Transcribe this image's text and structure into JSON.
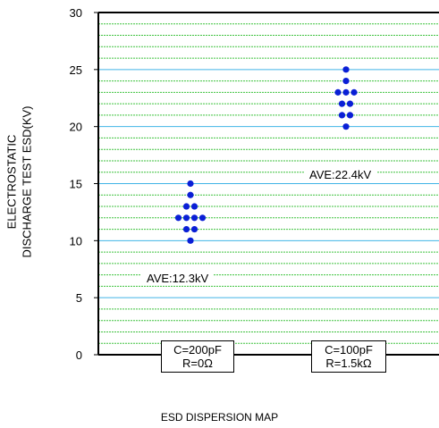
{
  "chart_data": {
    "type": "scatter",
    "ylabel_lines": [
      "ELECTROSTATIC",
      "DISCHARGE TEST ESD(KV)"
    ],
    "xlabel": "ESD DISPERSION MAP",
    "ylim": [
      0,
      30
    ],
    "yticks": [
      0,
      5,
      10,
      15,
      20,
      25,
      30
    ],
    "grid": true,
    "categories": [
      {
        "line1": "C=200pF",
        "line2": "R=0Ω"
      },
      {
        "line1": "C=100pF",
        "line2": "R=1.5kΩ"
      }
    ],
    "series": [
      {
        "values": [
          10,
          11,
          11,
          12,
          12,
          12,
          12,
          13,
          13,
          14,
          15
        ],
        "annotation": "AVE:12.3kV"
      },
      {
        "values": [
          20,
          21,
          21,
          22,
          22,
          23,
          23,
          23,
          24,
          25
        ],
        "annotation": "AVE:22.4kV"
      }
    ],
    "colors": {
      "points": "#0a1fd6",
      "major_grid": "#40b4e6",
      "minor_grid": "#3fc23f"
    }
  }
}
